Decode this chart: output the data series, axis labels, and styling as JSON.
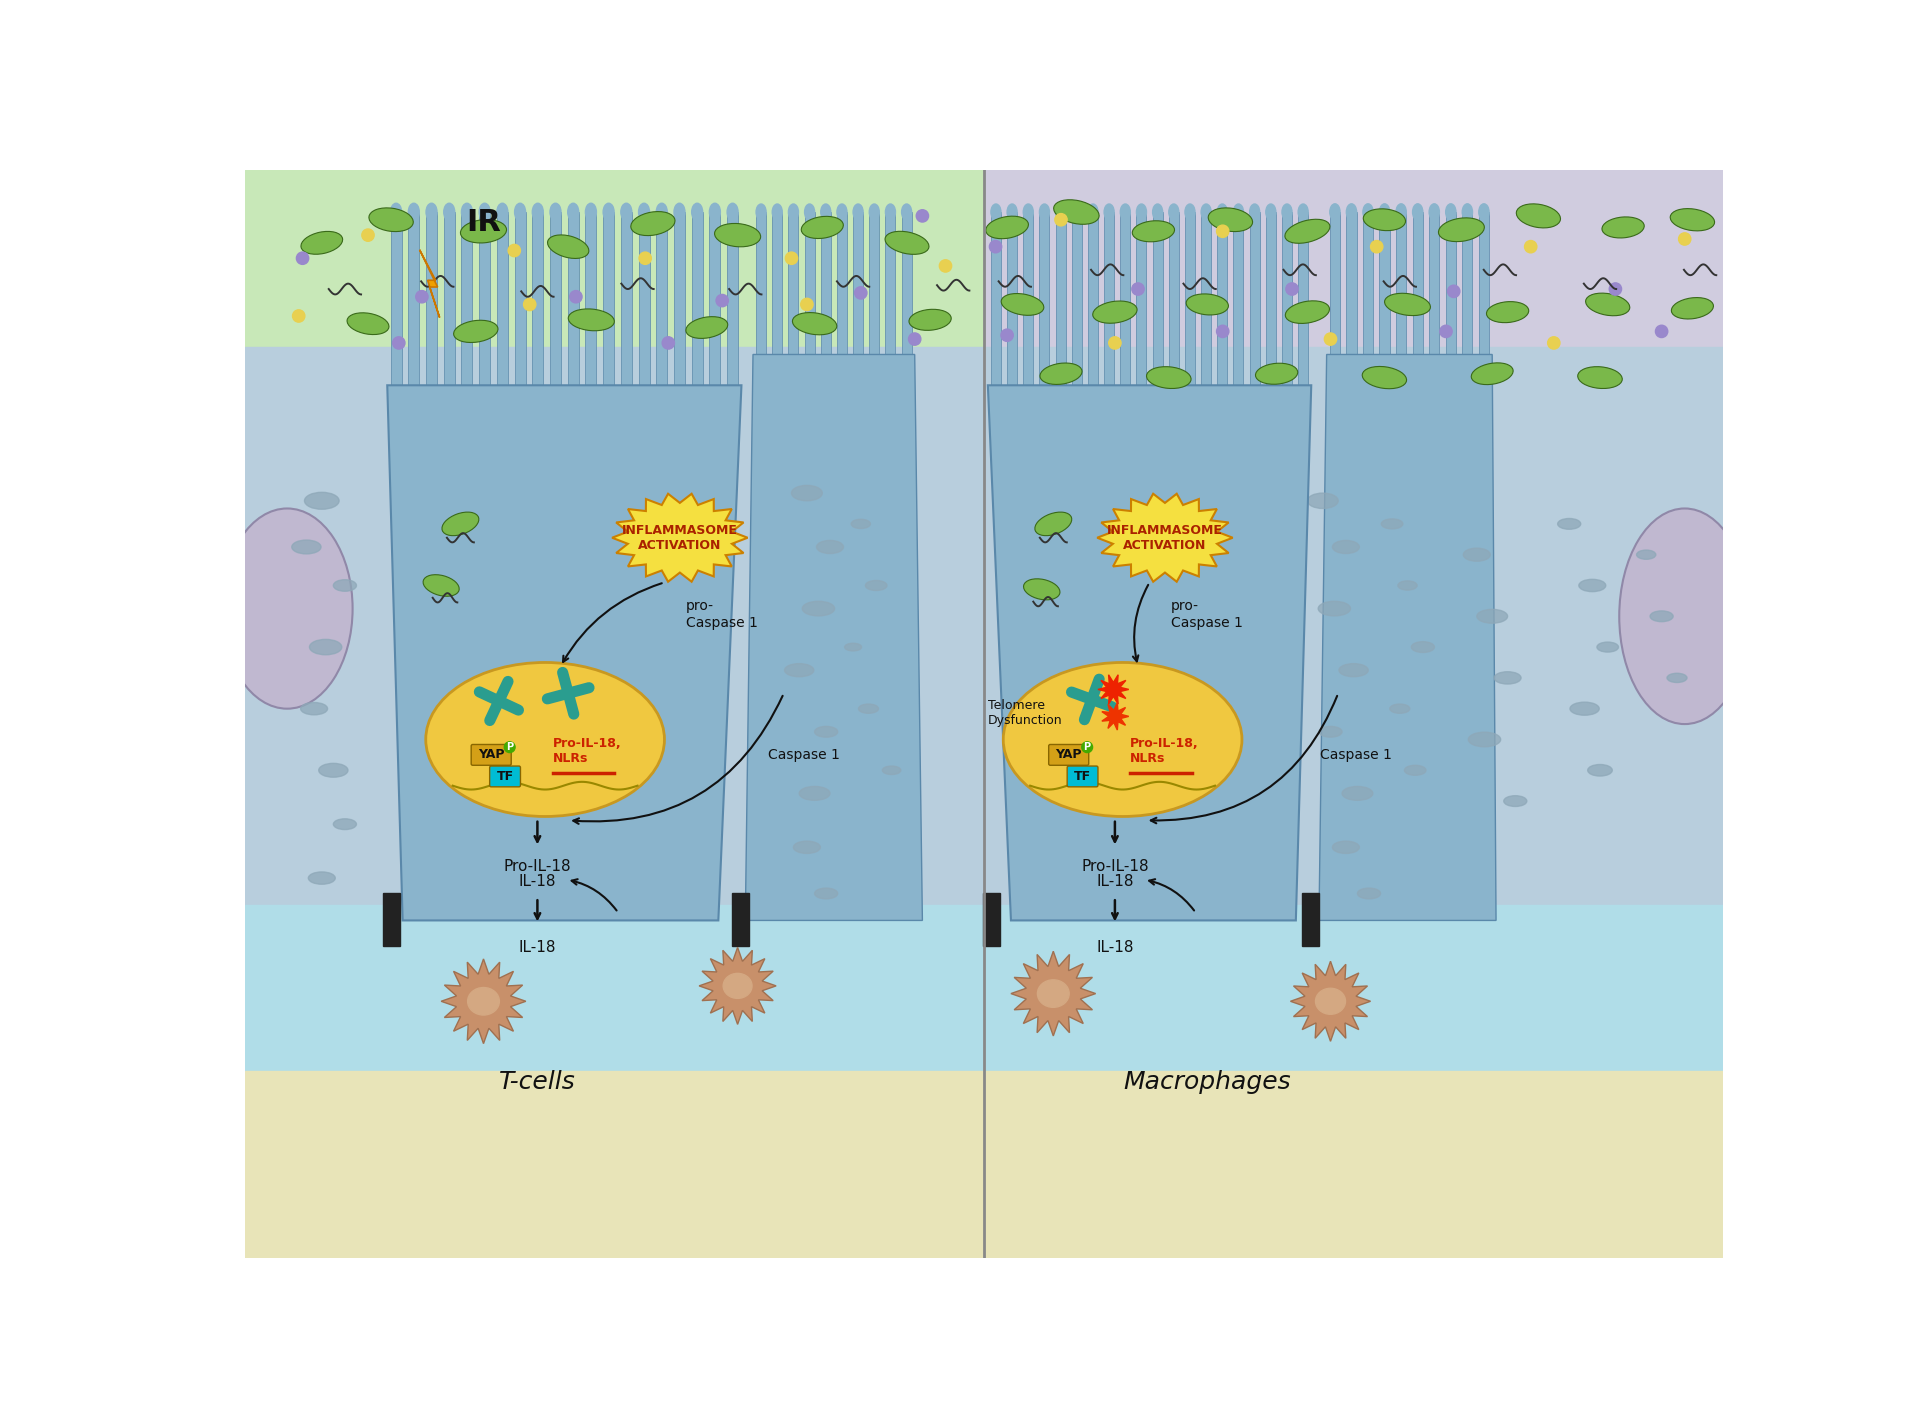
{
  "left_lumen_color": "#c8e8b8",
  "right_lumen_color": "#d0ccdf",
  "left_cell_bg": "#b8cedd",
  "right_cell_bg": "#b8cedd",
  "blood_color": "#b0dde8",
  "submucosa_color": "#e8e4b8",
  "epi_cell_color": "#8ab4cc",
  "epi_cell_border": "#5a88aa",
  "villi_color": "#8ab4cc",
  "villi_border": "#5a88aa",
  "nucleus_color": "#f0c840",
  "nucleus_border": "#c89820",
  "adjacent_cell_color": "#c0b8d0",
  "adjacent_cell_border": "#9088a8",
  "adjacent_cell2_color": "#c0c8d4",
  "inflammasome_color": "#f5e040",
  "inflammasome_border": "#cc8000",
  "inflammasome_text_color": "#aa2200",
  "chromosome_color": "#2a9d8f",
  "yap_color": "#d4a017",
  "tf_color": "#00bcd4",
  "p_color": "#44aa00",
  "pro_il18_color": "#cc2200",
  "red_burst_color": "#ee2200",
  "bacterium_color": "#7ab84a",
  "bacterium_border": "#3a6a1a",
  "squiggle_color": "#333333",
  "particle_purple": "#9988cc",
  "particle_yellow": "#e8d050",
  "tight_junction_color": "#222222",
  "immune_cell_color": "#c8906a",
  "immune_cell_center": "#d4a882",
  "divider_color": "#888888",
  "arrow_color": "#111111",
  "ir_text": "IR",
  "left_label": "T-cells",
  "right_label": "Macrophages",
  "inflammasome_label": "INFLAMMASOME\nACTIVATION",
  "pro_caspase_label": "pro-\nCaspase 1",
  "caspase_label": "Caspase 1",
  "pro_il18_text": "Pro-IL-18,\nNLRs",
  "pro_il18_arrow": "Pro-IL-18",
  "il18_text": "IL-18",
  "telomere_text": "Telomere\nDysfunction",
  "yap_text": "YAP",
  "tf_text": "TF",
  "p_text": "P"
}
